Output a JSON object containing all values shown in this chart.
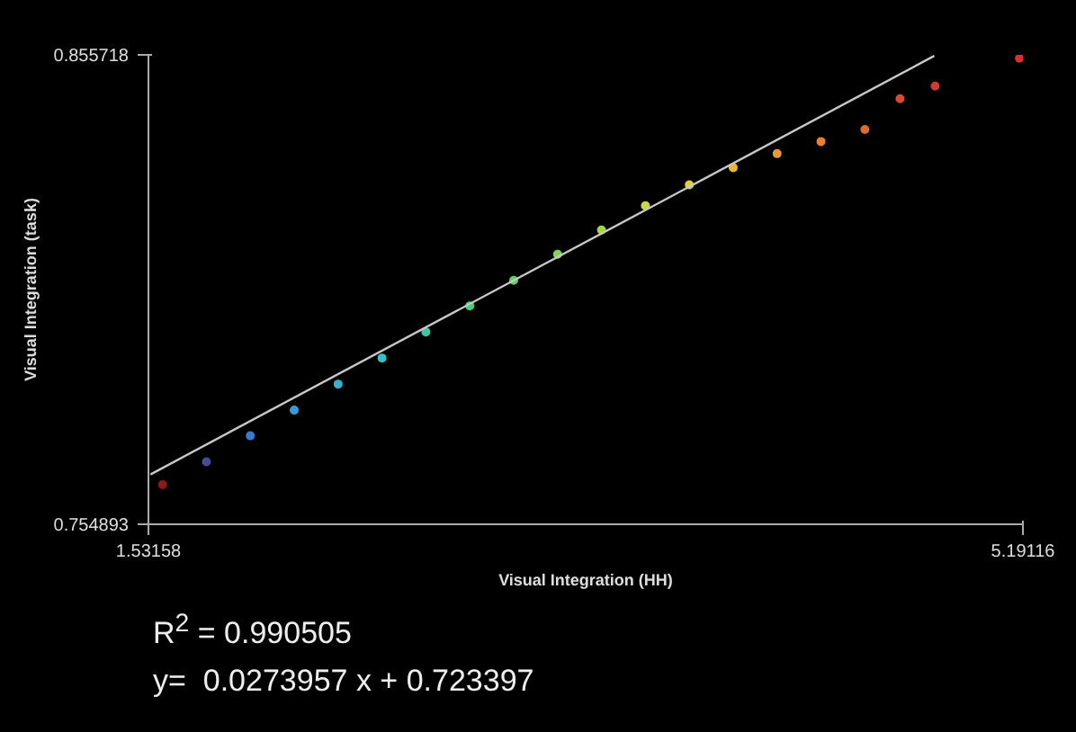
{
  "chart_data": {
    "type": "scatter",
    "xlabel": "Visual Integration (HH)",
    "ylabel": "Visual Integration (task)",
    "xlim": [
      1.53158,
      5.19116
    ],
    "ylim": [
      0.754893,
      0.855718
    ],
    "xticks": [
      1.53158,
      5.19116
    ],
    "yticks": [
      0.754893,
      0.855718
    ],
    "series": [
      {
        "marker": "circle",
        "x": [
          1.5904,
          1.7741,
          1.9578,
          2.1416,
          2.3253,
          2.509,
          2.6927,
          2.8764,
          3.0601,
          3.2438,
          3.4276,
          3.6113,
          3.795,
          3.9787,
          4.1624,
          4.3461,
          4.5298,
          4.6768,
          4.8238,
          5.1765
        ],
        "values": [
          0.7634,
          0.7683,
          0.7739,
          0.7794,
          0.785,
          0.7906,
          0.7962,
          0.8018,
          0.8073,
          0.8129,
          0.8181,
          0.8233,
          0.8278,
          0.8315,
          0.8345,
          0.8371,
          0.8397,
          0.8463,
          0.849,
          0.855
        ],
        "colors": [
          "#8a1a1a",
          "#4a4a9a",
          "#3a7ad0",
          "#3a9ad8",
          "#3ab0d0",
          "#3ac0c0",
          "#3ac8a0",
          "#40d080",
          "#60d060",
          "#80d850",
          "#a0d840",
          "#c8d840",
          "#e0d040",
          "#e8b830",
          "#e89a30",
          "#e88030",
          "#e06a30",
          "#d84a30",
          "#d03a30",
          "#d83030"
        ]
      },
      {
        "type": "line",
        "x": [
          1.54,
          4.82
        ],
        "values": [
          0.7656,
          0.8555
        ],
        "color": "#c8c8c8",
        "line_style": "solid"
      }
    ],
    "annotations": [
      "R$^{2}$ = 0.990505",
      "y=  0.0273957 x + 0.723397"
    ]
  }
}
